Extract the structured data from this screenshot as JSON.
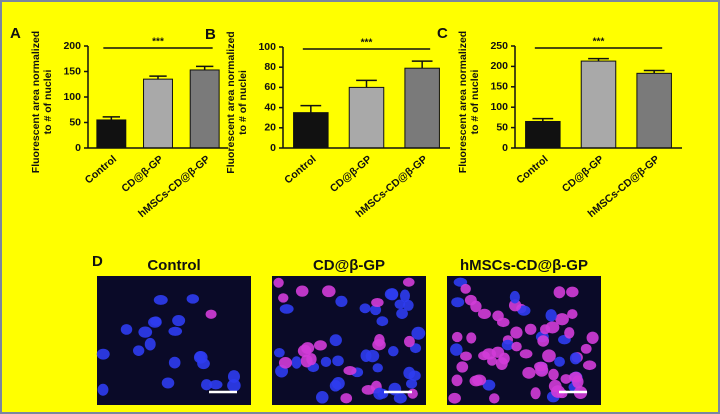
{
  "chart_data": [
    {
      "type": "bar",
      "panel_label": "A",
      "y_label": [
        "Fluorescent area normalized",
        "to # of nuclei"
      ],
      "categories": [
        "Control",
        "CD@β-GP",
        "hMSCs-CD@β-GP"
      ],
      "values": [
        55,
        135,
        153
      ],
      "errors": [
        6,
        6,
        7
      ],
      "colors": [
        "#111111",
        "#a9a9a9",
        "#7a7a7a"
      ],
      "ylim": [
        0,
        200
      ],
      "yticks": [
        0,
        50,
        100,
        150,
        200
      ],
      "annotation": "***"
    },
    {
      "type": "bar",
      "panel_label": "B",
      "y_label": [
        "Fluorescent area normalized",
        "to # of nuclei"
      ],
      "categories": [
        "Control",
        "CD@β-GP",
        "hMSCs-CD@β-GP"
      ],
      "values": [
        35,
        60,
        79
      ],
      "errors": [
        7,
        7,
        7
      ],
      "colors": [
        "#111111",
        "#a9a9a9",
        "#7a7a7a"
      ],
      "ylim": [
        0,
        100
      ],
      "yticks": [
        0,
        20,
        40,
        60,
        80,
        100
      ],
      "annotation": "***"
    },
    {
      "type": "bar",
      "panel_label": "C",
      "y_label": [
        "Fluorescent area normalized",
        "to # of nuclei"
      ],
      "categories": [
        "Control",
        "CD@β-GP",
        "hMSCs-CD@β-GP"
      ],
      "values": [
        65,
        213,
        183
      ],
      "errors": [
        7,
        6,
        7
      ],
      "colors": [
        "#111111",
        "#a9a9a9",
        "#7a7a7a"
      ],
      "ylim": [
        0,
        250
      ],
      "yticks": [
        0,
        50,
        100,
        150,
        200,
        250
      ],
      "annotation": "***"
    }
  ],
  "panel_d": {
    "label": "D",
    "titles": [
      "Control",
      "CD@β-GP",
      "hMSCs-CD@β-GP"
    ]
  }
}
